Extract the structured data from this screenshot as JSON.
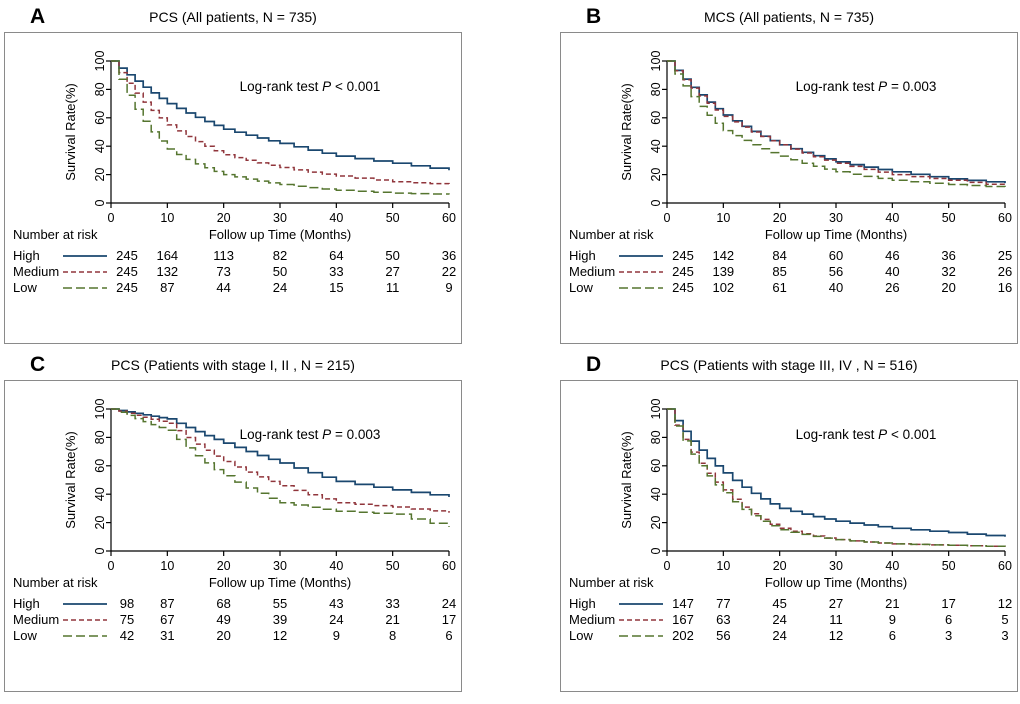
{
  "figure": {
    "background": "#ffffff",
    "risk_table_header": "Number at risk"
  },
  "chart_data": [
    {
      "type": "line",
      "subtype": "kaplan-meier",
      "panel": "A",
      "title": "PCS (All patients, N = 735)",
      "annotation": {
        "test": "Log-rank test",
        "p": "P",
        "value": "< 0.001"
      },
      "xlabel": "Follow up Time (Months)",
      "ylabel": "Survival Rate(%)",
      "xlim": [
        0,
        60
      ],
      "ylim": [
        0,
        100
      ],
      "xticks": [
        0,
        10,
        20,
        30,
        40,
        50,
        60
      ],
      "yticks": [
        0,
        20,
        40,
        60,
        80,
        100
      ],
      "x": [
        0,
        10,
        20,
        30,
        40,
        50,
        60
      ],
      "series": [
        {
          "name": "High",
          "color": "#1a476f",
          "dash": "solid",
          "values": [
            100,
            70,
            52,
            42,
            33,
            28,
            23
          ]
        },
        {
          "name": "Medium",
          "color": "#90353b",
          "dash": "dash",
          "values": [
            100,
            55,
            34,
            25,
            19,
            15,
            13
          ]
        },
        {
          "name": "Low",
          "color": "#55752f",
          "dash": "longdash",
          "values": [
            100,
            38,
            20,
            13,
            9,
            7,
            6
          ]
        }
      ],
      "number_at_risk": {
        "label": "Number at risk",
        "rows": [
          {
            "name": "High",
            "counts": [
              245,
              164,
              113,
              82,
              64,
              50,
              36
            ]
          },
          {
            "name": "Medium",
            "counts": [
              245,
              132,
              73,
              50,
              33,
              27,
              22
            ]
          },
          {
            "name": "Low",
            "counts": [
              245,
              87,
              44,
              24,
              15,
              11,
              9
            ]
          }
        ]
      }
    },
    {
      "type": "line",
      "subtype": "kaplan-meier",
      "panel": "B",
      "title": "MCS (All patients, N = 735)",
      "annotation": {
        "test": "Log-rank test",
        "p": "P",
        "value": "= 0.003"
      },
      "xlabel": "Follow up Time (Months)",
      "ylabel": "Survival Rate(%)",
      "xlim": [
        0,
        60
      ],
      "ylim": [
        0,
        100
      ],
      "xticks": [
        0,
        10,
        20,
        30,
        40,
        50,
        60
      ],
      "yticks": [
        0,
        20,
        40,
        60,
        80,
        100
      ],
      "x": [
        0,
        10,
        20,
        30,
        40,
        50,
        60
      ],
      "series": [
        {
          "name": "High",
          "color": "#1a476f",
          "dash": "solid",
          "values": [
            100,
            62,
            41,
            29,
            22,
            17,
            14
          ]
        },
        {
          "name": "Medium",
          "color": "#90353b",
          "dash": "dash",
          "values": [
            100,
            61,
            41,
            28,
            20,
            16,
            12
          ]
        },
        {
          "name": "Low",
          "color": "#55752f",
          "dash": "longdash",
          "values": [
            100,
            51,
            33,
            22,
            16,
            13,
            11
          ]
        }
      ],
      "number_at_risk": {
        "label": "Number at risk",
        "rows": [
          {
            "name": "High",
            "counts": [
              245,
              142,
              84,
              60,
              46,
              36,
              25
            ]
          },
          {
            "name": "Medium",
            "counts": [
              245,
              139,
              85,
              56,
              40,
              32,
              26
            ]
          },
          {
            "name": "Low",
            "counts": [
              245,
              102,
              61,
              40,
              26,
              20,
              16
            ]
          }
        ]
      }
    },
    {
      "type": "line",
      "subtype": "kaplan-meier",
      "panel": "C",
      "title": "PCS (Patients with stage I, II , N = 215)",
      "annotation": {
        "test": "Log-rank test",
        "p": "P",
        "value": "= 0.003"
      },
      "xlabel": "Follow up Time (Months)",
      "ylabel": "Survival Rate(%)",
      "xlim": [
        0,
        60
      ],
      "ylim": [
        0,
        100
      ],
      "xticks": [
        0,
        10,
        20,
        30,
        40,
        50,
        60
      ],
      "yticks": [
        0,
        20,
        40,
        60,
        80,
        100
      ],
      "x": [
        0,
        10,
        20,
        30,
        40,
        50,
        60
      ],
      "series": [
        {
          "name": "High",
          "color": "#1a476f",
          "dash": "solid",
          "values": [
            100,
            93,
            76,
            62,
            49,
            43,
            38
          ]
        },
        {
          "name": "Medium",
          "color": "#90353b",
          "dash": "dash",
          "values": [
            100,
            90,
            63,
            46,
            34,
            31,
            27
          ]
        },
        {
          "name": "Low",
          "color": "#55752f",
          "dash": "longdash",
          "values": [
            100,
            85,
            53,
            34,
            28,
            26,
            17
          ]
        }
      ],
      "number_at_risk": {
        "label": "Number at risk",
        "rows": [
          {
            "name": "High",
            "counts": [
              98,
              87,
              68,
              55,
              43,
              33,
              24
            ]
          },
          {
            "name": "Medium",
            "counts": [
              75,
              67,
              49,
              39,
              24,
              21,
              17
            ]
          },
          {
            "name": "Low",
            "counts": [
              42,
              31,
              20,
              12,
              9,
              8,
              6
            ]
          }
        ]
      }
    },
    {
      "type": "line",
      "subtype": "kaplan-meier",
      "panel": "D",
      "title": "PCS (Patients with stage III, IV , N = 516)",
      "annotation": {
        "test": "Log-rank test",
        "p": "P",
        "value": "< 0.001"
      },
      "xlabel": "Follow up Time (Months)",
      "ylabel": "Survival Rate(%)",
      "xlim": [
        0,
        60
      ],
      "ylim": [
        0,
        100
      ],
      "xticks": [
        0,
        10,
        20,
        30,
        40,
        50,
        60
      ],
      "yticks": [
        0,
        20,
        40,
        60,
        80,
        100
      ],
      "x": [
        0,
        10,
        20,
        30,
        40,
        50,
        60
      ],
      "series": [
        {
          "name": "High",
          "color": "#1a476f",
          "dash": "solid",
          "values": [
            100,
            55,
            30,
            21,
            16,
            13,
            10
          ]
        },
        {
          "name": "Medium",
          "color": "#90353b",
          "dash": "dash",
          "values": [
            100,
            43,
            16,
            8,
            5,
            4,
            3
          ]
        },
        {
          "name": "Low",
          "color": "#55752f",
          "dash": "longdash",
          "values": [
            100,
            41,
            15,
            8,
            5,
            4,
            3
          ]
        }
      ],
      "number_at_risk": {
        "label": "Number at risk",
        "rows": [
          {
            "name": "High",
            "counts": [
              147,
              77,
              45,
              27,
              21,
              17,
              12
            ]
          },
          {
            "name": "Medium",
            "counts": [
              167,
              63,
              24,
              11,
              9,
              6,
              5
            ]
          },
          {
            "name": "Low",
            "counts": [
              202,
              56,
              24,
              12,
              6,
              3,
              3
            ]
          }
        ]
      }
    }
  ]
}
